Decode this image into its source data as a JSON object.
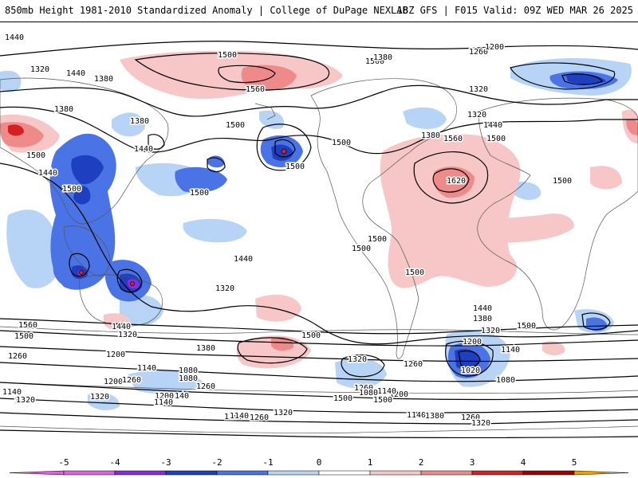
{
  "header": {
    "title": "850mb Height 1981-2010 Standardized Anomaly | College of DuPage NEXLAB",
    "run_info": "18Z GFS | F015 Valid: 09Z WED MAR 26 2025"
  },
  "colorbar": {
    "ticks": [
      "-5",
      "-4",
      "-3",
      "-2",
      "-1",
      "0",
      "1",
      "2",
      "3",
      "4",
      "5"
    ],
    "colors": [
      "#e060e0",
      "#8a2be2",
      "#1e3fbf",
      "#4a74e6",
      "#b7d3f5",
      "#ffffff",
      "#f7c6c6",
      "#ee8a8a",
      "#d42020",
      "#a00000",
      "#f5a000"
    ]
  },
  "map": {
    "contour_labels": [
      "1440",
      "1500",
      "1380",
      "1320",
      "1260",
      "1200",
      "1140",
      "1080",
      "1560",
      "1620",
      "1020"
    ],
    "labels": [
      {
        "text": "1440",
        "color": "#000"
      },
      {
        "text": "1380",
        "color": "#000"
      },
      {
        "text": "1320",
        "color": "#000"
      },
      {
        "text": "1440",
        "color": "#000"
      },
      {
        "text": "1500",
        "color": "#000"
      },
      {
        "text": "1560",
        "color": "#000"
      },
      {
        "text": "1380",
        "color": "#000"
      },
      {
        "text": "1380",
        "color": "#000"
      },
      {
        "text": "1440",
        "color": "#000"
      },
      {
        "text": "1500",
        "color": "#000"
      },
      {
        "text": "1440",
        "color": "#000"
      },
      {
        "text": "1500",
        "color": "#000"
      },
      {
        "text": "1500",
        "color": "#000"
      },
      {
        "text": "1500",
        "color": "#000"
      },
      {
        "text": "1500",
        "color": "#000"
      },
      {
        "text": "1500",
        "color": "#000"
      },
      {
        "text": "1500",
        "color": "#000"
      },
      {
        "text": "1380",
        "color": "#000"
      },
      {
        "text": "1260",
        "color": "#000"
      },
      {
        "text": "1200",
        "color": "#000"
      },
      {
        "text": "1320",
        "color": "#000"
      },
      {
        "text": "1320",
        "color": "#000"
      },
      {
        "text": "1440",
        "color": "#000"
      },
      {
        "text": "1500",
        "color": "#000"
      },
      {
        "text": "1560",
        "color": "#000"
      },
      {
        "text": "1380",
        "color": "#000"
      },
      {
        "text": "1620",
        "color": "#000"
      },
      {
        "text": "1500",
        "color": "#000"
      },
      {
        "text": "1500",
        "color": "#000"
      },
      {
        "text": "1500",
        "color": "#000"
      },
      {
        "text": "1500",
        "color": "#000"
      },
      {
        "text": "1440",
        "color": "#000"
      },
      {
        "text": "1380",
        "color": "#000"
      },
      {
        "text": "1320",
        "color": "#000"
      },
      {
        "text": "1200",
        "color": "#000"
      },
      {
        "text": "1140",
        "color": "#000"
      },
      {
        "text": "1020",
        "color": "#000"
      },
      {
        "text": "1080",
        "color": "#000"
      },
      {
        "text": "1500",
        "color": "#000"
      },
      {
        "text": "1500",
        "color": "#000"
      },
      {
        "text": "1440",
        "color": "#000"
      },
      {
        "text": "1320",
        "color": "#000"
      },
      {
        "text": "1560",
        "color": "#000"
      },
      {
        "text": "1500",
        "color": "#000"
      },
      {
        "text": "1440",
        "color": "#000"
      },
      {
        "text": "1320",
        "color": "#000"
      },
      {
        "text": "1260",
        "color": "#000"
      },
      {
        "text": "1200",
        "color": "#000"
      },
      {
        "text": "1140",
        "color": "#000"
      },
      {
        "text": "1080",
        "color": "#000"
      },
      {
        "text": "1380",
        "color": "#000"
      },
      {
        "text": "1260",
        "color": "#000"
      },
      {
        "text": "1200",
        "color": "#000"
      },
      {
        "text": "1140",
        "color": "#000"
      },
      {
        "text": "1320",
        "color": "#000"
      },
      {
        "text": "1260",
        "color": "#000"
      },
      {
        "text": "1380",
        "color": "#000"
      },
      {
        "text": "1140",
        "color": "#000"
      },
      {
        "text": "1320",
        "color": "#000"
      },
      {
        "text": "1200",
        "color": "#000"
      },
      {
        "text": "1260",
        "color": "#000"
      },
      {
        "text": "1140",
        "color": "#000"
      },
      {
        "text": "1080",
        "color": "#000"
      },
      {
        "text": "1200",
        "color": "#000"
      },
      {
        "text": "1260",
        "color": "#000"
      },
      {
        "text": "1140",
        "color": "#000"
      },
      {
        "text": "1320",
        "color": "#000"
      },
      {
        "text": "1200",
        "color": "#000"
      },
      {
        "text": "1140",
        "color": "#000"
      },
      {
        "text": "1260",
        "color": "#000"
      },
      {
        "text": "1320",
        "color": "#000"
      },
      {
        "text": "1080",
        "color": "#000"
      },
      {
        "text": "1260",
        "color": "#000"
      },
      {
        "text": "1140",
        "color": "#000"
      },
      {
        "text": "1320",
        "color": "#000"
      },
      {
        "text": "1380",
        "color": "#000"
      },
      {
        "text": "1500",
        "color": "#000"
      },
      {
        "text": "1500",
        "color": "#000"
      }
    ]
  }
}
